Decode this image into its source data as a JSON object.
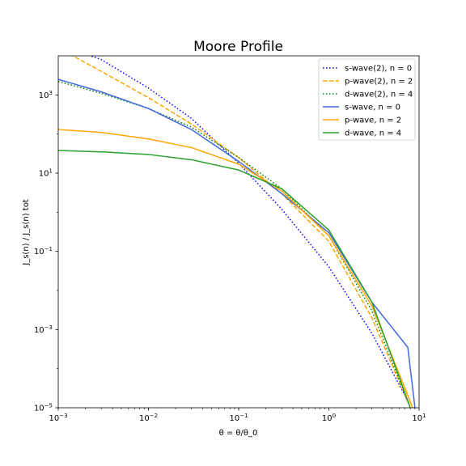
{
  "chart_data": {
    "type": "line",
    "title": "Moore Profile",
    "xlabel": "θ = θ/θ_0",
    "ylabel": "J_s(n) / J_s(n) tot",
    "xscale": "log",
    "yscale": "log",
    "xlim": [
      0.001,
      10
    ],
    "ylim": [
      1e-05,
      10000
    ],
    "grid": false,
    "legend_position": "top-right",
    "x_ticks": [
      {
        "value": 0.001,
        "base": "10",
        "exp": "−3"
      },
      {
        "value": 0.01,
        "base": "10",
        "exp": "−2"
      },
      {
        "value": 0.1,
        "base": "10",
        "exp": "−1"
      },
      {
        "value": 1,
        "base": "10",
        "exp": "0"
      },
      {
        "value": 10,
        "base": "10",
        "exp": "1"
      }
    ],
    "y_ticks": [
      {
        "value": 1e-05,
        "base": "10",
        "exp": "−5"
      },
      {
        "value": 0.001,
        "base": "10",
        "exp": "−3"
      },
      {
        "value": 0.1,
        "base": "10",
        "exp": "−1"
      },
      {
        "value": 10,
        "base": "10",
        "exp": "1"
      },
      {
        "value": 1000,
        "base": "10",
        "exp": "3"
      }
    ],
    "series": [
      {
        "name": "s-wave(2), n = 0",
        "color": "#0000ff",
        "style": "dotted",
        "x": [
          0.001,
          0.003,
          0.01,
          0.03,
          0.1,
          0.3,
          1,
          3,
          7.5
        ],
        "y": [
          20000,
          8000,
          1500,
          250,
          18,
          1.2,
          0.04,
          0.0008,
          1.5e-05
        ]
      },
      {
        "name": "p-wave(2), n = 2",
        "color": "#ffa500",
        "style": "dashed",
        "x": [
          0.001,
          0.003,
          0.01,
          0.03,
          0.1,
          0.3,
          1,
          3,
          8
        ],
        "y": [
          16000,
          4000,
          850,
          180,
          25,
          3,
          0.18,
          0.002,
          1e-05
        ]
      },
      {
        "name": "d-wave(2), n = 4",
        "color": "#008000",
        "style": "dotted",
        "x": [
          0.001,
          0.003,
          0.01,
          0.03,
          0.1,
          0.3,
          1,
          3,
          8
        ],
        "y": [
          2200,
          1100,
          450,
          150,
          25,
          4,
          0.25,
          0.003,
          1e-05
        ]
      },
      {
        "name": "s-wave, n = 0",
        "color": "#4169e1",
        "style": "solid",
        "x": [
          0.001,
          0.003,
          0.01,
          0.03,
          0.1,
          0.3,
          1,
          3,
          7.5,
          9
        ],
        "y": [
          2500,
          1200,
          450,
          130,
          20,
          3,
          0.3,
          0.005,
          0.00035,
          1e-05
        ]
      },
      {
        "name": "p-wave, n = 2",
        "color": "#ffa500",
        "style": "solid",
        "x": [
          0.001,
          0.003,
          0.01,
          0.03,
          0.1,
          0.3,
          1,
          3,
          8.5
        ],
        "y": [
          130,
          110,
          75,
          45,
          17,
          3.5,
          0.25,
          0.004,
          1e-05
        ]
      },
      {
        "name": "d-wave, n = 4",
        "color": "#2ca02c",
        "style": "solid",
        "x": [
          0.001,
          0.003,
          0.01,
          0.03,
          0.1,
          0.3,
          1,
          3,
          8
        ],
        "y": [
          38,
          35,
          30,
          22,
          12,
          4,
          0.35,
          0.005,
          1e-05
        ]
      }
    ]
  }
}
